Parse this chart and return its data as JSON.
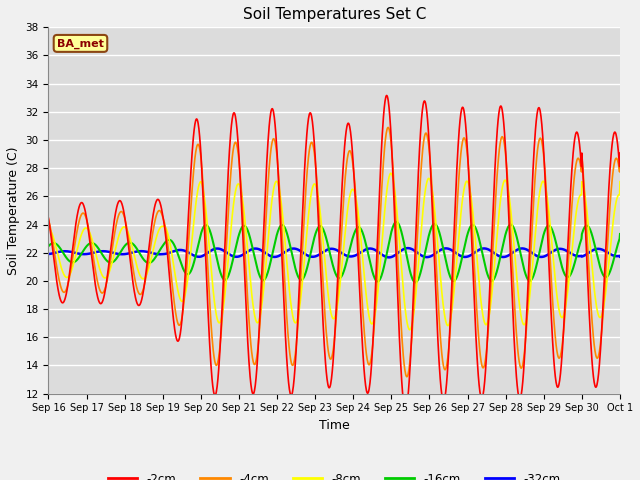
{
  "title": "Soil Temperatures Set C",
  "xlabel": "Time",
  "ylabel": "Soil Temperature (C)",
  "ylim": [
    12,
    38
  ],
  "yticks": [
    12,
    14,
    16,
    18,
    20,
    22,
    24,
    26,
    28,
    30,
    32,
    34,
    36,
    38
  ],
  "plot_bg_color": "#dcdcdc",
  "fig_bg_color": "#f0f0f0",
  "legend_label": "BA_met",
  "series_colors": [
    "#ff0000",
    "#ff8800",
    "#ffff00",
    "#00cc00",
    "#0000ff"
  ],
  "series_labels": [
    "-2cm",
    "-4cm",
    "-8cm",
    "-16cm",
    "-32cm"
  ],
  "series_linewidths": [
    1.2,
    1.2,
    1.2,
    1.5,
    1.8
  ],
  "x_tick_labels": [
    "Sep 16",
    "Sep 17",
    "Sep 18",
    "Sep 19",
    "Sep 20",
    "Sep 21",
    "Sep 22",
    "Sep 23",
    "Sep 24",
    "Sep 25",
    "Sep 26",
    "Sep 27",
    "Sep 28",
    "Sep 29",
    "Sep 30",
    "Oct 1"
  ],
  "grid_color": "#ffffff",
  "title_fontsize": 11,
  "tick_fontsize": 7,
  "base_temp": 22.0,
  "damping_depth": 8.5,
  "depths_cm": [
    2,
    4,
    8,
    16,
    32
  ],
  "peak_hour": 14.0,
  "dt_hours": 0.25,
  "n_days": 15,
  "amp_by_day": [
    4.5,
    4.5,
    4.7,
    4.8,
    13.0,
    12.5,
    13.0,
    12.5,
    11.5,
    14.5,
    13.5,
    13.0,
    13.2,
    13.0,
    10.5
  ]
}
